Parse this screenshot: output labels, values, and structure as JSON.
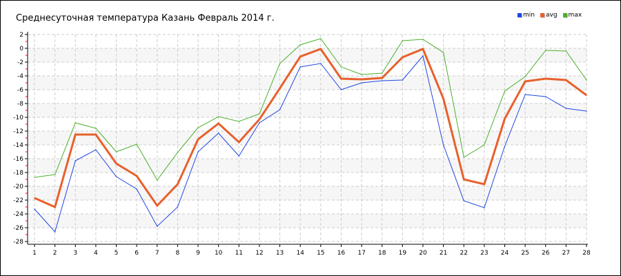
{
  "chart_data": {
    "type": "line",
    "title": "Среднесуточная температура Казань  Февраль 2014 г.",
    "x": [
      1,
      2,
      3,
      4,
      5,
      6,
      7,
      8,
      9,
      10,
      11,
      12,
      13,
      14,
      15,
      16,
      17,
      18,
      19,
      20,
      21,
      22,
      23,
      24,
      25,
      26,
      27,
      28
    ],
    "ylim": [
      -28,
      2
    ],
    "yticks": [
      2,
      0,
      -2,
      -4,
      -6,
      -8,
      -10,
      -12,
      -14,
      -16,
      -18,
      -20,
      -22,
      -24,
      -26,
      -28
    ],
    "grid": true,
    "legend": "top-right",
    "series": [
      {
        "name": "min",
        "color": "#2146e0",
        "values": [
          -23.3,
          -26.6,
          -16.3,
          -14.7,
          -18.6,
          -20.4,
          -25.8,
          -23.0,
          -15.0,
          -12.3,
          -15.6,
          -10.8,
          -8.9,
          -2.7,
          -2.2,
          -6.0,
          -5.0,
          -4.7,
          -4.6,
          -1.1,
          -14.0,
          -22.1,
          -23.1,
          -14.2,
          -6.7,
          -7.0,
          -8.7,
          -9.1
        ]
      },
      {
        "name": "avg",
        "color": "#e8602c",
        "values": [
          -21.7,
          -23.0,
          -12.5,
          -12.5,
          -16.7,
          -18.5,
          -22.8,
          -19.7,
          -13.2,
          -10.9,
          -13.6,
          -10.3,
          -5.8,
          -1.2,
          -0.1,
          -4.4,
          -4.5,
          -4.3,
          -1.3,
          -0.1,
          -7.3,
          -19.0,
          -19.7,
          -10.2,
          -4.8,
          -4.4,
          -4.6,
          -6.8
        ]
      },
      {
        "name": "max",
        "color": "#4caf2a",
        "values": [
          -18.7,
          -18.3,
          -10.8,
          -11.6,
          -15.0,
          -13.9,
          -19.1,
          -15.1,
          -11.5,
          -9.9,
          -10.6,
          -9.5,
          -2.2,
          0.5,
          1.4,
          -2.7,
          -3.8,
          -3.6,
          1.1,
          1.3,
          -0.6,
          -15.8,
          -14.0,
          -6.2,
          -4.1,
          -0.3,
          -0.4,
          -4.6
        ]
      }
    ]
  }
}
